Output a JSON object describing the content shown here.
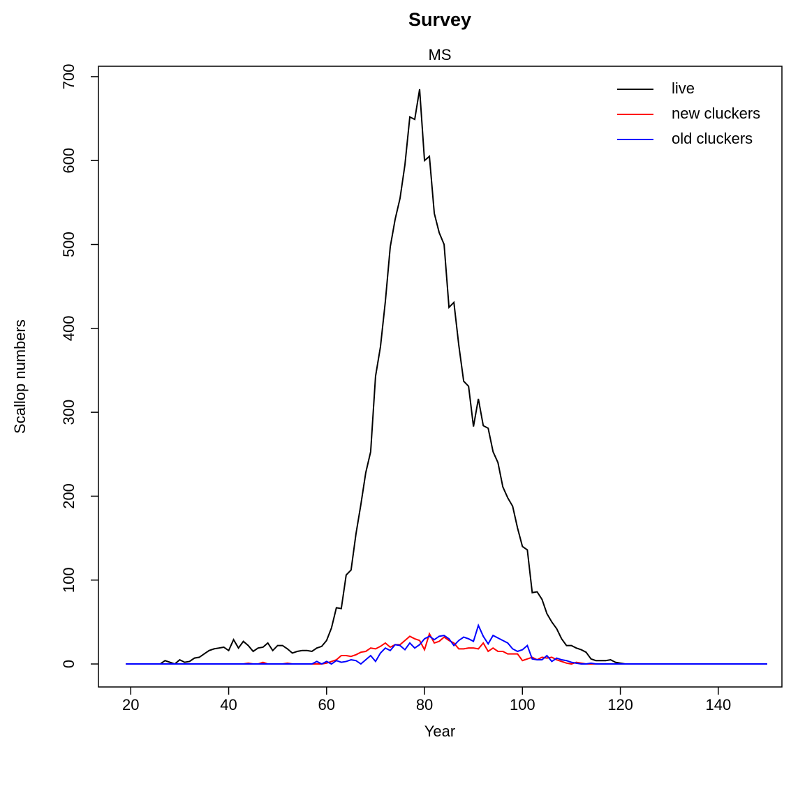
{
  "chart_data": {
    "type": "line",
    "title": "Survey",
    "subtitle": "MS",
    "x_label": "Year",
    "y_label": "Scallop numbers",
    "x": [
      19,
      20,
      21,
      22,
      23,
      24,
      25,
      26,
      27,
      28,
      29,
      30,
      31,
      32,
      33,
      34,
      35,
      36,
      37,
      38,
      39,
      40,
      41,
      42,
      43,
      44,
      45,
      46,
      47,
      48,
      49,
      50,
      51,
      52,
      53,
      54,
      55,
      56,
      57,
      58,
      59,
      60,
      61,
      62,
      63,
      64,
      65,
      66,
      67,
      68,
      69,
      70,
      71,
      72,
      73,
      74,
      75,
      76,
      77,
      78,
      79,
      80,
      81,
      82,
      83,
      84,
      85,
      86,
      87,
      88,
      89,
      90,
      91,
      92,
      93,
      94,
      95,
      96,
      97,
      98,
      99,
      100,
      101,
      102,
      103,
      104,
      105,
      106,
      107,
      108,
      109,
      110,
      111,
      112,
      113,
      114,
      115,
      116,
      117,
      118,
      119,
      120,
      121,
      122,
      123,
      124,
      125,
      126,
      127,
      128,
      129,
      130,
      131,
      132,
      133,
      134,
      135,
      136,
      137,
      138,
      139,
      140,
      141,
      142,
      143,
      144,
      145,
      146,
      147,
      148,
      149,
      150
    ],
    "series": [
      {
        "name": "live",
        "color": "#000000",
        "values": [
          0,
          0,
          0,
          0,
          0,
          0,
          0,
          0,
          4,
          2,
          0,
          5,
          2,
          3,
          7,
          8,
          12,
          16,
          18,
          19,
          20,
          16,
          29,
          19,
          27,
          22,
          15,
          19,
          20,
          25,
          16,
          22,
          22,
          18,
          13,
          15,
          16,
          16,
          15,
          19,
          21,
          28,
          43,
          67,
          66,
          106,
          112,
          155,
          190,
          228,
          253,
          343,
          378,
          432,
          497,
          530,
          555,
          595,
          652,
          649,
          685,
          600,
          605,
          537,
          514,
          500,
          425,
          431,
          380,
          337,
          331,
          283,
          316,
          284,
          281,
          253,
          240,
          211,
          198,
          188,
          162,
          140,
          136,
          85,
          86,
          77,
          60,
          50,
          42,
          30,
          22,
          22,
          19,
          17,
          14,
          6,
          4,
          4,
          4,
          5,
          2,
          1,
          0,
          0,
          0,
          0,
          0,
          0,
          0,
          0,
          0,
          0,
          0,
          0,
          0,
          0,
          0,
          0,
          0,
          0,
          0,
          0,
          0,
          0,
          0,
          0,
          0,
          0,
          0,
          0,
          0,
          0
        ]
      },
      {
        "name": "new cluckers",
        "color": "#ff0000",
        "values": [
          0,
          0,
          0,
          0,
          0,
          0,
          0,
          0,
          0,
          0,
          0,
          0,
          0,
          0,
          0,
          0,
          0,
          0,
          0,
          0,
          0,
          0,
          0,
          0,
          0,
          1,
          0,
          0,
          2,
          0,
          0,
          0,
          0,
          1,
          0,
          0,
          0,
          0,
          0,
          0,
          0,
          1,
          3,
          5,
          10,
          10,
          9,
          11,
          14,
          15,
          19,
          18,
          21,
          25,
          20,
          23,
          23,
          28,
          33,
          30,
          28,
          17,
          36,
          25,
          27,
          32,
          28,
          25,
          18,
          18,
          19,
          19,
          18,
          25,
          15,
          19,
          15,
          15,
          12,
          12,
          12,
          4,
          6,
          8,
          5,
          8,
          7,
          8,
          5,
          3,
          1,
          0,
          2,
          1,
          0,
          0,
          0,
          0,
          0,
          0,
          0,
          0,
          0,
          0,
          0,
          0,
          0,
          0,
          0,
          0,
          0,
          0,
          0,
          0,
          0,
          0,
          0,
          0,
          0,
          0,
          0,
          0,
          0,
          0,
          0,
          0,
          0,
          0,
          0,
          0,
          0,
          0
        ]
      },
      {
        "name": "old cluckers",
        "color": "#0000ff",
        "values": [
          0,
          0,
          0,
          0,
          0,
          0,
          0,
          0,
          0,
          0,
          0,
          0,
          0,
          0,
          0,
          0,
          0,
          0,
          0,
          0,
          0,
          0,
          0,
          0,
          0,
          0,
          0,
          0,
          0,
          0,
          0,
          0,
          0,
          0,
          0,
          0,
          0,
          0,
          0,
          3,
          0,
          3,
          0,
          4,
          2,
          3,
          5,
          4,
          0,
          5,
          10,
          3,
          13,
          19,
          16,
          23,
          22,
          17,
          25,
          19,
          23,
          30,
          33,
          29,
          33,
          34,
          30,
          22,
          28,
          32,
          30,
          27,
          46,
          33,
          24,
          34,
          31,
          28,
          25,
          18,
          15,
          17,
          22,
          6,
          5,
          5,
          10,
          3,
          7,
          5,
          4,
          2,
          1,
          0,
          0,
          1,
          0,
          0,
          0,
          0,
          0,
          0,
          0,
          0,
          0,
          0,
          0,
          0,
          0,
          0,
          0,
          0,
          0,
          0,
          0,
          0,
          0,
          0,
          0,
          0,
          0,
          0,
          0,
          0,
          0,
          0,
          0,
          0,
          0,
          0,
          0,
          0
        ]
      }
    ],
    "xlim": [
      13.4,
      153
    ],
    "ylim": [
      -27.4,
      712.4
    ],
    "xticks": [
      20,
      40,
      60,
      80,
      100,
      120,
      140
    ],
    "yticks": [
      0,
      100,
      200,
      300,
      400,
      500,
      600,
      700
    ],
    "legend": "top-right"
  }
}
